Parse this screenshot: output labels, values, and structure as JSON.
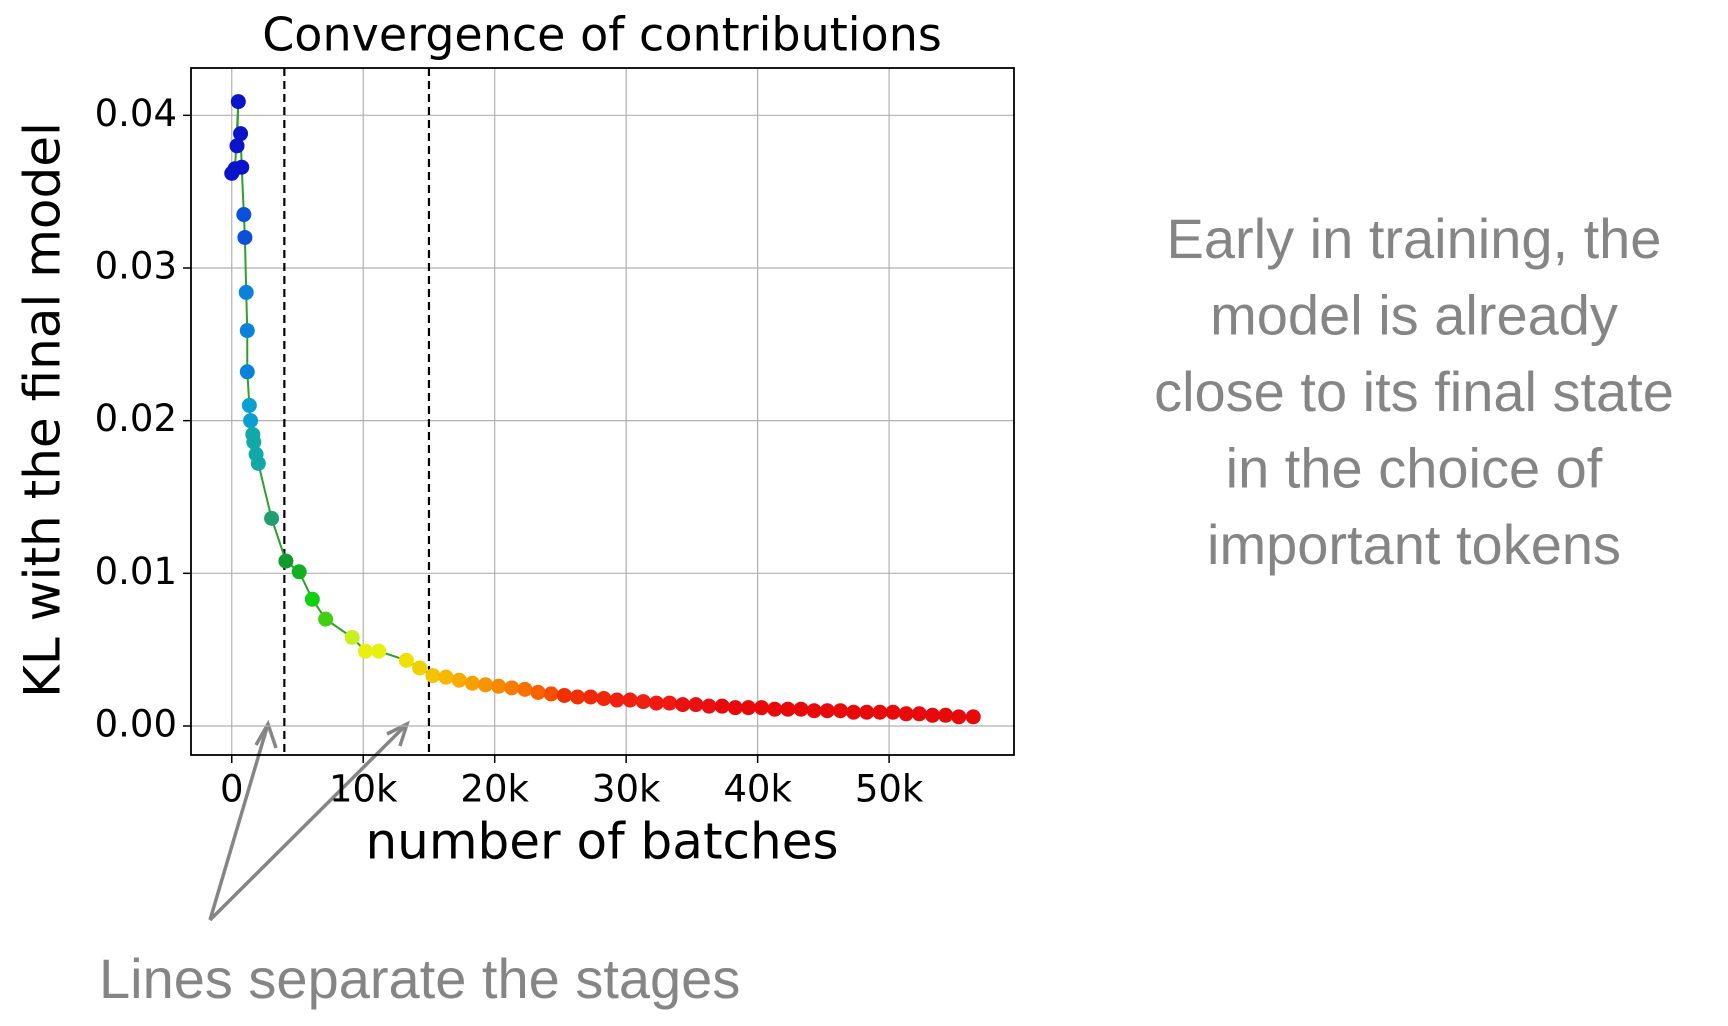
{
  "chart_data": {
    "type": "scatter-line",
    "title": "Convergence of contributions",
    "xlabel": "number of batches",
    "ylabel": "KL with the final model",
    "x": [
      0,
      250,
      500,
      400,
      670,
      760,
      920,
      1000,
      1100,
      1180,
      1180,
      1340,
      1430,
      1600,
      1680,
      1850,
      2020,
      3030,
      4120,
      5130,
      6130,
      7140,
      9160,
      10170,
      11180,
      13280,
      14290,
      15300,
      16300,
      17300,
      18300,
      19300,
      20300,
      21300,
      22300,
      23300,
      24300,
      25300,
      26300,
      27300,
      28300,
      29300,
      30300,
      31300,
      32300,
      33300,
      34300,
      35300,
      36300,
      37300,
      38300,
      39300,
      40300,
      41300,
      42300,
      43300,
      44300,
      45300,
      46300,
      47300,
      48300,
      49300,
      50300,
      51300,
      52300,
      53300,
      54300,
      55300,
      56400
    ],
    "series": [
      {
        "values": [
          0.0362,
          0.0365,
          0.0409,
          0.038,
          0.0388,
          0.0366,
          0.0335,
          0.032,
          0.0284,
          0.0259,
          0.0232,
          0.021,
          0.02,
          0.0191,
          0.0186,
          0.0178,
          0.0172,
          0.0136,
          0.0108,
          0.0101,
          0.0083,
          0.007,
          0.0058,
          0.0049,
          0.0049,
          0.0043,
          0.0038,
          0.0033,
          0.0032,
          0.003,
          0.0028,
          0.0027,
          0.0026,
          0.0025,
          0.0024,
          0.0022,
          0.0021,
          0.002,
          0.0019,
          0.0019,
          0.0018,
          0.0017,
          0.0017,
          0.0016,
          0.0015,
          0.0015,
          0.0014,
          0.0014,
          0.0013,
          0.0013,
          0.0012,
          0.0012,
          0.0012,
          0.0011,
          0.0011,
          0.0011,
          0.001,
          0.001,
          0.001,
          0.0009,
          0.0009,
          0.0009,
          0.0009,
          0.0008,
          0.0008,
          0.0007,
          0.0007,
          0.0006,
          0.0006
        ],
        "line_color": "#2ca02c",
        "point_colors": [
          "#0a14c8",
          "#0a14c8",
          "#0a14c8",
          "#0a14c8",
          "#0a14c8",
          "#0a14c8",
          "#0a50d8",
          "#0a50d8",
          "#0a82dc",
          "#0a82dc",
          "#0a82dc",
          "#08a0d0",
          "#08a0d0",
          "#10a8a8",
          "#10a8a8",
          "#10a8a8",
          "#10a8a8",
          "#20a070",
          "#109a30",
          "#10b020",
          "#10d010",
          "#40d010",
          "#c8f020",
          "#e8f010",
          "#e8f010",
          "#f0e000",
          "#f0d000",
          "#f5c400",
          "#f7b800",
          "#f8ac00",
          "#f8a000",
          "#f89400",
          "#f88800",
          "#f87c00",
          "#f87000",
          "#f86000",
          "#f85000",
          "#f03000",
          "#f03000",
          "#f02808",
          "#f02808",
          "#f02010",
          "#f02010",
          "#f02010",
          "#f01810",
          "#f01810",
          "#e81010",
          "#e81010",
          "#e81010",
          "#e80a0a",
          "#e80a0a",
          "#e80a0a",
          "#e80a0a",
          "#e80a0a",
          "#e80a0a",
          "#e80a0a",
          "#e80a0a",
          "#e80a0a",
          "#e80a0a",
          "#e80a0a",
          "#e80a0a",
          "#e80a0a",
          "#e80a0a",
          "#e80a0a",
          "#e80a0a",
          "#e80a0a",
          "#e80a0a",
          "#e80a0a",
          "#e80a0a"
        ]
      }
    ],
    "vlines": [
      4000,
      15000
    ],
    "xlim": [
      -3100,
      59500
    ],
    "ylim": [
      -0.0019,
      0.0431
    ],
    "xticks": [
      0,
      {
        "value": 10000,
        "label": "10k"
      },
      {
        "value": 20000,
        "label": "20k"
      },
      {
        "value": 30000,
        "label": "30k"
      },
      {
        "value": 40000,
        "label": "40k"
      },
      {
        "value": 50000,
        "label": "50k"
      }
    ],
    "yticks": [
      {
        "value": 0,
        "label": "0.00"
      },
      {
        "value": 0.01,
        "label": "0.01"
      },
      {
        "value": 0.02,
        "label": "0.02"
      },
      {
        "value": 0.03,
        "label": "0.03"
      },
      {
        "value": 0.04,
        "label": "0.04"
      }
    ],
    "grid": true
  },
  "description": [
    "Early in training, the",
    "model is already",
    "close to its final state",
    "in the choice of",
    "important tokens"
  ],
  "annotation": "Lines separate the stages"
}
